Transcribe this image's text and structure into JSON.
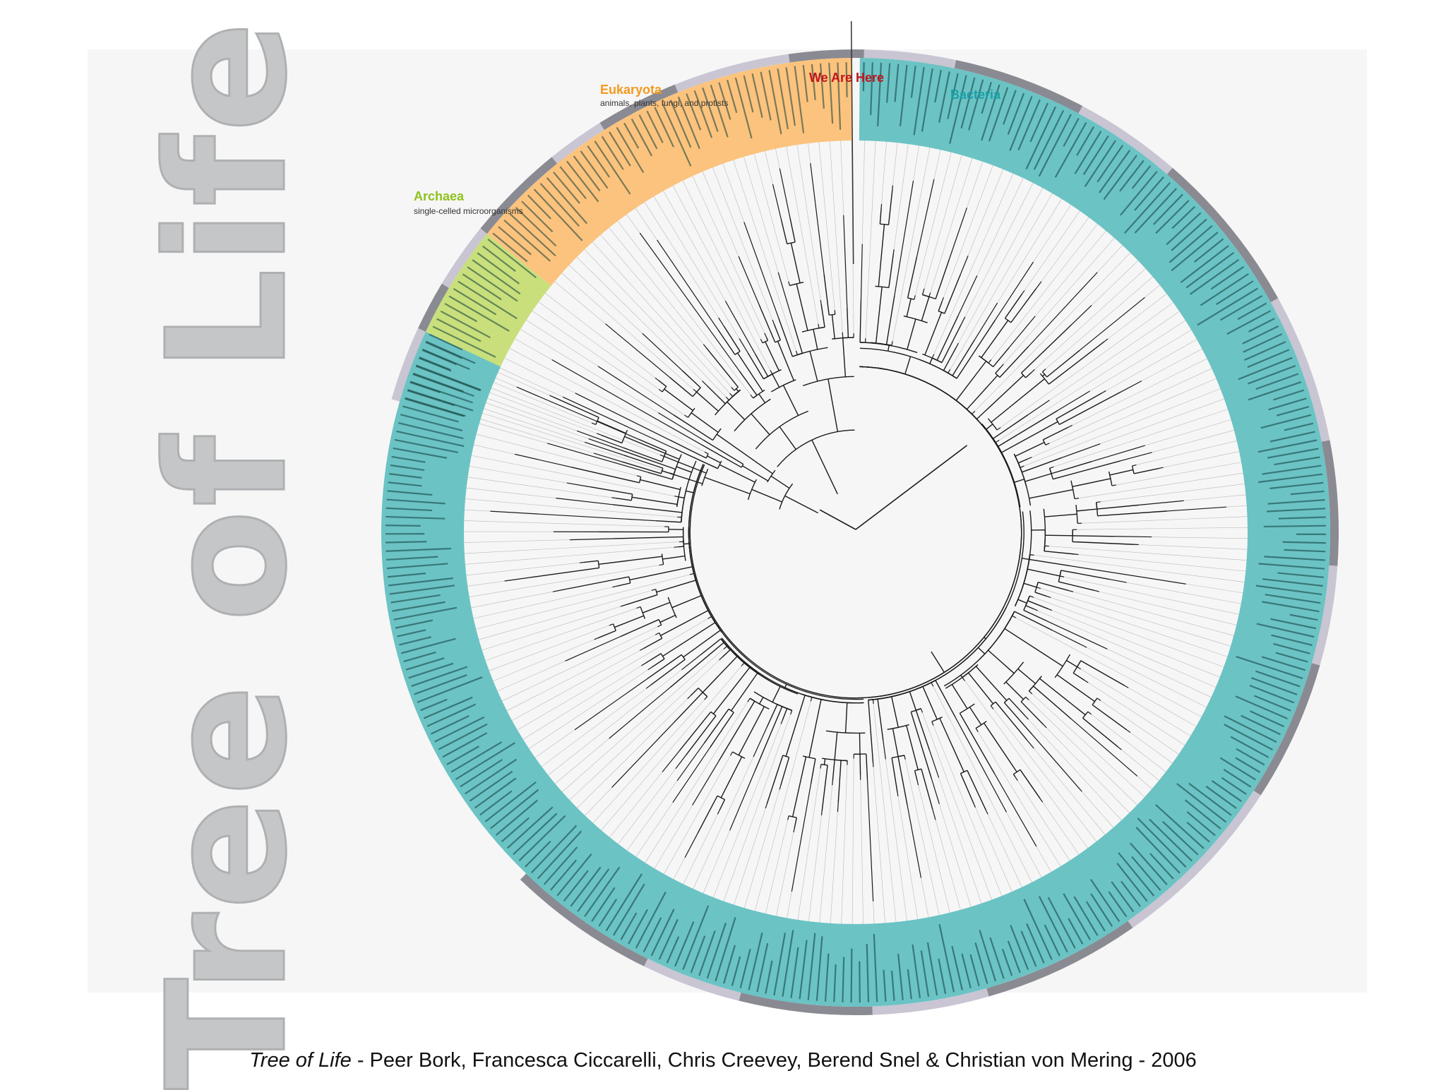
{
  "title": "Tree of Life",
  "caption": {
    "italic": "Tree of Life",
    "rest": " - Peer Bork, Francesca Ciccarelli, Chris Creevey, Berend Snel & Christian von Mering - 2006"
  },
  "domains": [
    {
      "key": "archaea",
      "name": "Archaea",
      "subtitle": "single-celled microorganisms",
      "color": "#c8df7c",
      "label_color": "#8fc21d"
    },
    {
      "key": "eukaryota",
      "name": "Eukaryota",
      "subtitle": "animals, plants, fungi, and protists",
      "color": "#fbc37d",
      "label_color": "#f29a1e"
    },
    {
      "key": "bacteria",
      "name": "Bacteria",
      "subtitle": "",
      "color": "#6bc3c4",
      "label_color": "#1aa0a8"
    }
  ],
  "marker": {
    "label": "We Are Here",
    "color": "#c1141e"
  },
  "colors": {
    "branch": "#1a1a1a",
    "ring_light": "#c9c5d3",
    "ring_dark": "#8a8a92",
    "species_text": "#113a3b"
  }
}
